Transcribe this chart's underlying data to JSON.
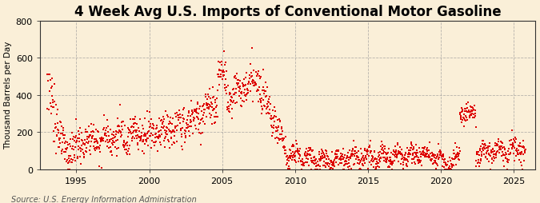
{
  "title": "4 Week Avg U.S. Imports of Conventional Motor Gasoline",
  "ylabel": "Thousand Barrels per Day",
  "source": "Source: U.S. Energy Information Administration",
  "background_color": "#faefd8",
  "plot_bg_color": "#faefd8",
  "data_color": "#dd0000",
  "grid_color": "#999999",
  "ylim": [
    0,
    800
  ],
  "yticks": [
    0,
    200,
    400,
    600,
    800
  ],
  "xlim_start": 1992.5,
  "xlim_end": 2026.5,
  "xticks": [
    1995,
    2000,
    2005,
    2010,
    2015,
    2020,
    2025
  ],
  "title_fontsize": 12,
  "ylabel_fontsize": 7.5,
  "tick_fontsize": 8,
  "source_fontsize": 7
}
